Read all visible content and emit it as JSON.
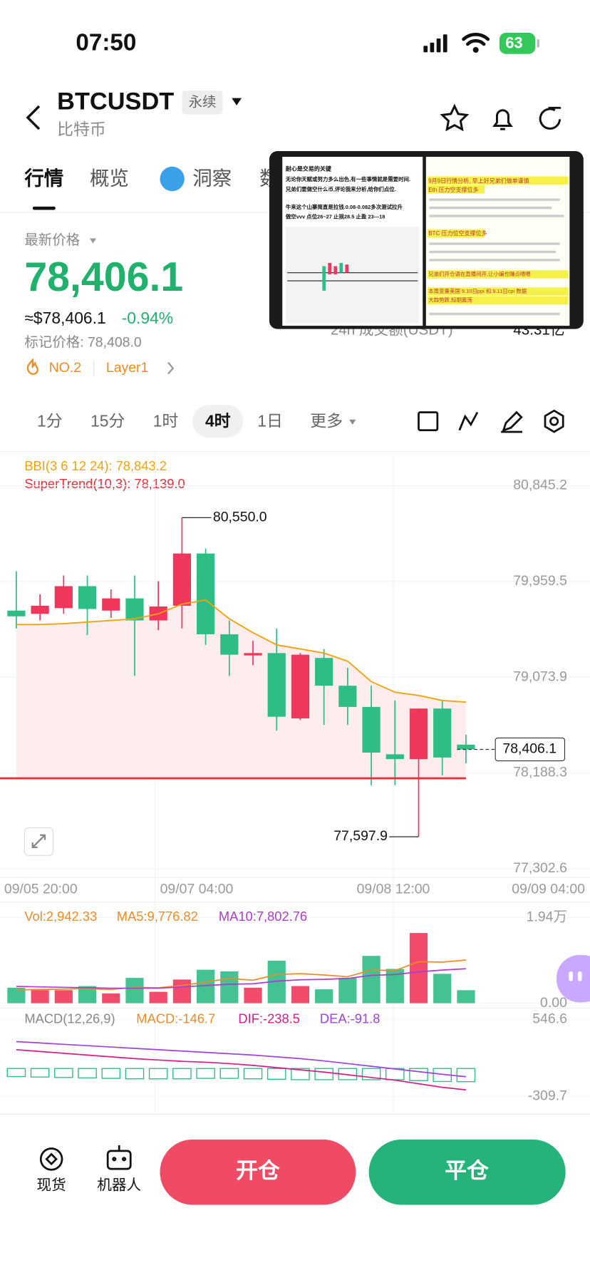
{
  "status_bar": {
    "time": "07:50",
    "battery": "63"
  },
  "header": {
    "symbol": "BTCUSDT",
    "contract": "永续",
    "name": "比特币"
  },
  "tabs": [
    "行情",
    "概览",
    "洞察",
    "数"
  ],
  "price_panel": {
    "label": "最新价格",
    "price": "78,406.1",
    "usd": "≈$78,406.1",
    "change": "-0.94%",
    "mark_price": "标记价格: 78,408.0",
    "rank": "NO.2",
    "sector": "Layer1",
    "turnover_label": "24h 成交额(USDT)",
    "turnover": "43.31亿"
  },
  "pip_video": {
    "left": [
      "耐心是交易的关键",
      "无论你天赋或努力多么出色,有一些事情就是需要时间.",
      "兄弟们要做空什么币,评论我来分析,给你们点位.",
      "牛来这个山寨简直是拉钱.0.08-0.082多次测试拉升",
      "做空vvv 点位26~27  止损28.5  止盈 23---18"
    ],
    "right": [
      "9月9日行情分析, 早上好兄弟们做单谨慎",
      "Eth 压力空支撑位多",
      "BTC 压力位空支撑位多",
      "兄弟们开仓语在直播间开,让小编也赚点喂喂",
      "本周变量美国 9.10日ppi 和 9.11日cpi 数据",
      "大趋势跌,短期震荡"
    ]
  },
  "intervals": [
    "1分",
    "15分",
    "1时",
    "4时",
    "1日",
    "更多"
  ],
  "active_interval": 3,
  "chart_data": {
    "type": "candlestick",
    "up_color": "#f0365a",
    "down_color": "#2ebd85",
    "candles": [
      {
        "open": 79690,
        "high": 80052,
        "low": 79524,
        "close": 79637
      },
      {
        "open": 79660,
        "high": 79841,
        "low": 79599,
        "close": 79735
      },
      {
        "open": 79713,
        "high": 80015,
        "low": 79660,
        "close": 79916
      },
      {
        "open": 79916,
        "high": 80015,
        "low": 79463,
        "close": 79705
      },
      {
        "open": 79690,
        "high": 79886,
        "low": 79622,
        "close": 79803
      },
      {
        "open": 79803,
        "high": 80015,
        "low": 79086,
        "close": 79599
      },
      {
        "open": 79599,
        "high": 79962,
        "low": 79509,
        "close": 79728
      },
      {
        "open": 79735,
        "high": 80550,
        "low": 79524,
        "close": 80218
      },
      {
        "open": 80218,
        "high": 80264,
        "low": 79373,
        "close": 79471
      },
      {
        "open": 79471,
        "high": 79599,
        "low": 79086,
        "close": 79282
      },
      {
        "open": 79275,
        "high": 79411,
        "low": 79184,
        "close": 79297
      },
      {
        "open": 79297,
        "high": 79524,
        "low": 78580,
        "close": 78708
      },
      {
        "open": 78693,
        "high": 79297,
        "low": 78678,
        "close": 79282
      },
      {
        "open": 79252,
        "high": 79335,
        "low": 78633,
        "close": 78995
      },
      {
        "open": 78995,
        "high": 79161,
        "low": 78633,
        "close": 78799
      },
      {
        "open": 78799,
        "high": 78995,
        "low": 78074,
        "close": 78376
      },
      {
        "open": 78361,
        "high": 78859,
        "low": 78074,
        "close": 78316
      },
      {
        "open": 78316,
        "high": 78784,
        "low": 77597.9,
        "close": 78784
      },
      {
        "open": 78784,
        "high": 78859,
        "low": 78165,
        "close": 78331
      },
      {
        "open": 78450,
        "high": 78542,
        "low": 78278,
        "close": 78406.1
      }
    ],
    "bbi": {
      "label": "BBI(3 6 12 24): 78,843.2",
      "color": "#f0a30a",
      "values": [
        79561,
        79561,
        79569,
        79584,
        79599,
        79614,
        79660,
        79750,
        79788,
        79614,
        79486,
        79373,
        79335,
        79297,
        79222,
        79033,
        78935,
        78905,
        78859,
        78843.2
      ]
    },
    "supertrend": {
      "label": "SuperTrend(10,3): 78,139.0",
      "value": 78139,
      "color": "#e8303a"
    },
    "annotations": [
      {
        "label": "80,550.0",
        "value": 80550,
        "candle": 7
      },
      {
        "label": "77,597.9",
        "value": 77597.9,
        "candle": 17
      }
    ],
    "current_price": {
      "label": "78,406.1",
      "value": 78406.1
    },
    "ylim": [
      77221,
      81162
    ],
    "yticks": [
      {
        "value": 80845.2,
        "label": "80,845.2"
      },
      {
        "value": 79959.5,
        "label": "79,959.5"
      },
      {
        "value": 79073.9,
        "label": "79,073.9"
      },
      {
        "value": 78188.3,
        "label": "78,188.3"
      },
      {
        "value": 77302.6,
        "label": "77,302.6"
      }
    ],
    "x_labels": [
      "09/05 20:00",
      "09/07 04:00",
      "09/08 12:00",
      "09/09 04:00"
    ],
    "volume": {
      "legend": [
        "Vol:2,942.33",
        "MA5:9,776.82",
        "MA10:7,802.76"
      ],
      "values": [
        3511,
        2957,
        2957,
        3881,
        2218,
        5729,
        2587,
        5359,
        7577,
        7207,
        3511,
        9610,
        3881,
        3142,
        5729,
        10718,
        7762,
        15893,
        6653,
        2942.33
      ],
      "ma5": [
        3000,
        3100,
        3200,
        3300,
        3100,
        3600,
        3500,
        4000,
        4800,
        5600,
        5200,
        6500,
        6700,
        6400,
        6000,
        7500,
        7400,
        9400,
        9300,
        9776.82
      ],
      "ma10": [
        3800,
        3700,
        3600,
        3500,
        3400,
        3400,
        3400,
        3700,
        4000,
        4300,
        4400,
        5000,
        5300,
        5400,
        5600,
        6300,
        6500,
        7100,
        7500,
        7802.76
      ],
      "ylim": [
        0,
        19400
      ],
      "yticks": [
        {
          "value": 19400,
          "label": "1.94万"
        },
        {
          "value": 0,
          "label": "0.00"
        }
      ]
    },
    "macd": {
      "legend": [
        "MACD(12,26,9)",
        "MACD:-146.7",
        "DIF:-238.5",
        "DEA:-91.8"
      ],
      "hist": [
        -90,
        -95,
        -100,
        -105,
        -110,
        -115,
        -115,
        -115,
        -110,
        -110,
        -115,
        -120,
        -125,
        -125,
        -125,
        -125,
        -125,
        -135,
        -145,
        -146.7
      ],
      "dif": [
        210,
        190,
        170,
        150,
        130,
        110,
        95,
        80,
        70,
        55,
        35,
        10,
        -15,
        -40,
        -70,
        -100,
        -130,
        -170,
        -210,
        -238.5
      ],
      "dea": [
        300,
        285,
        270,
        255,
        240,
        225,
        210,
        195,
        180,
        165,
        150,
        130,
        110,
        85,
        55,
        25,
        -5,
        -35,
        -65,
        -91.8
      ],
      "ylim": [
        -483,
        656
      ],
      "yticks": [
        {
          "value": 546.6,
          "label": "546.6"
        },
        {
          "value": -309.7,
          "label": "-309.7"
        }
      ]
    }
  },
  "bottom_bar": {
    "spot": "现货",
    "bot": "机器人",
    "open": "开仓",
    "close": "平仓"
  }
}
